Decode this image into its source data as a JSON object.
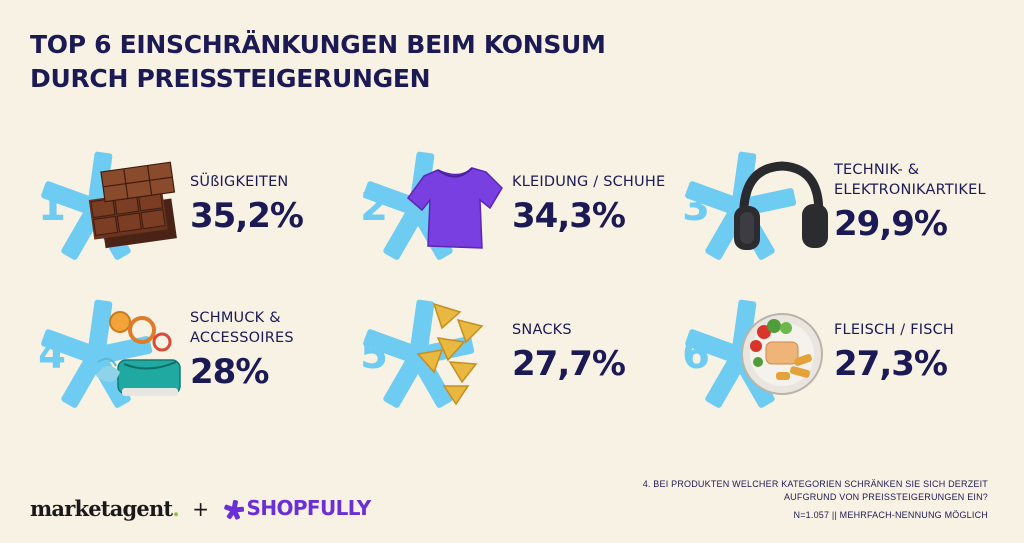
{
  "title": {
    "line1": "TOP 6 EINSCHRÄNKUNGEN BEIM KONSUM",
    "line2": "DURCH PREISSTEIGERUNGEN"
  },
  "items": [
    {
      "rank": "1",
      "label_line1": "SÜßIGKEITEN",
      "label_line2": "",
      "value": "35,2%",
      "icon": "chocolate-icon"
    },
    {
      "rank": "2",
      "label_line1": "KLEIDUNG / SCHUHE",
      "label_line2": "",
      "value": "34,3%",
      "icon": "tshirt-icon"
    },
    {
      "rank": "3",
      "label_line1": "TECHNIK- &",
      "label_line2": "ELEKTRONIKARTIKEL",
      "value": "29,9%",
      "icon": "headphones-icon"
    },
    {
      "rank": "4",
      "label_line1": "SCHMUCK &",
      "label_line2": "ACCESSOIRES",
      "value": "28%",
      "icon": "accessories-icon"
    },
    {
      "rank": "5",
      "label_line1": "SNACKS",
      "label_line2": "",
      "value": "27,7%",
      "icon": "nachos-icon"
    },
    {
      "rank": "6",
      "label_line1": "FLEISCH / FISCH",
      "label_line2": "",
      "value": "27,3%",
      "icon": "food-plate-icon"
    }
  ],
  "colors": {
    "background": "#f8f2e4",
    "text": "#1c1a55",
    "accent_burst": "#6ecbf2",
    "shopfully": "#6a2fd6",
    "marketagent_dot": "#8bc34a"
  },
  "footer": {
    "question_line1": "4. BEI PRODUKTEN WELCHER KATEGORIEN SCHRÄNKEN SIE SICH DERZEIT",
    "question_line2": "AUFGRUND VON PREISSTEIGERUNGEN EIN?",
    "sample": "N=1.057 || MEHRFACH-NENNUNG MÖGLICH",
    "logo_marketagent": "marketagent",
    "logo_marketagent_dot": ".",
    "plus": "+",
    "logo_shopfully": "SHOPFULLY"
  }
}
